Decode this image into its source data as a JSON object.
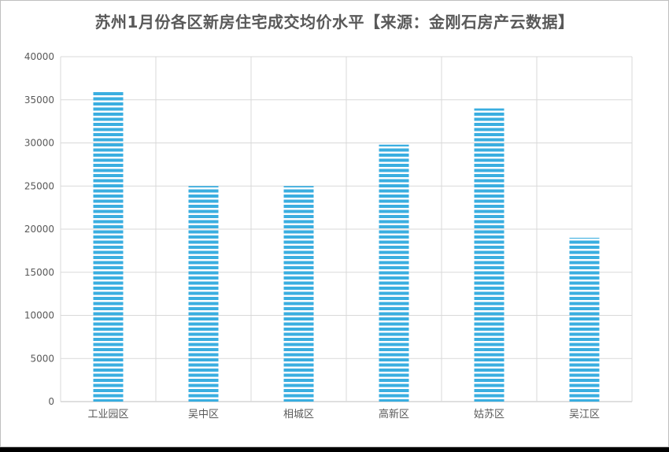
{
  "chart_data": {
    "type": "bar",
    "title": "苏州1月份各区新房住宅成交均价水平【来源：金刚石房产云数据】",
    "categories": [
      "工业园区",
      "吴中区",
      "相城区",
      "高新区",
      "姑苏区",
      "吴江区"
    ],
    "values": [
      36100,
      25000,
      25000,
      29800,
      34000,
      19000
    ],
    "ylim": [
      0,
      40000
    ],
    "yticks": [
      0,
      5000,
      10000,
      15000,
      20000,
      25000,
      30000,
      35000,
      40000
    ],
    "xlabel": "",
    "ylabel": "",
    "grid": true,
    "bar_color": "#3aaee0",
    "bar_pattern": "horizontal-stripes"
  }
}
